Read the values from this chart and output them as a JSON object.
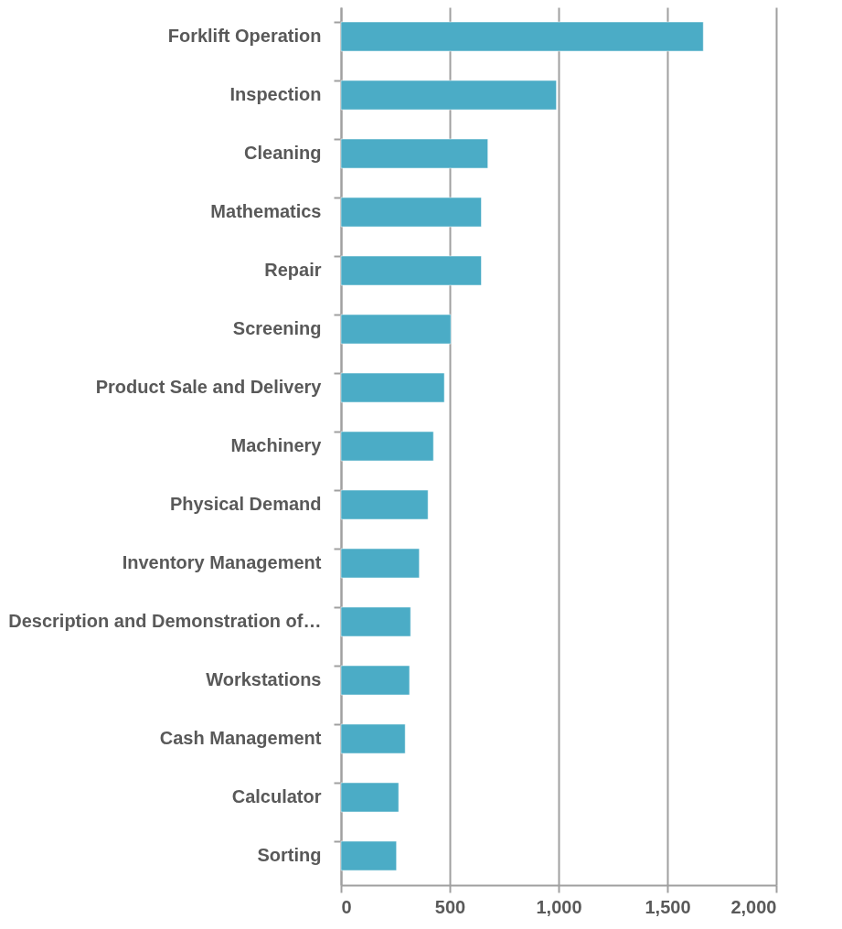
{
  "chart_data": {
    "type": "bar",
    "orientation": "horizontal",
    "categories": [
      "Forklift Operation",
      "Inspection",
      "Cleaning",
      "Mathematics",
      "Repair",
      "Screening",
      "Product Sale and Delivery",
      "Machinery",
      "Physical Demand",
      "Inventory Management",
      "Description and Demonstration of…",
      "Workstations",
      "Cash Management",
      "Calculator",
      "Sorting"
    ],
    "values": [
      1665,
      990,
      675,
      645,
      645,
      505,
      475,
      425,
      400,
      360,
      320,
      315,
      295,
      265,
      255
    ],
    "color": "#4bacc6",
    "xlim": [
      0,
      2000
    ],
    "xticks": [
      0,
      {
        "value": 500,
        "label": "500"
      },
      {
        "value": 1000,
        "label": "1,000"
      },
      {
        "value": 1500,
        "label": "1,500"
      },
      {
        "value": 2000,
        "label": "2,000"
      }
    ],
    "grid": "x"
  }
}
